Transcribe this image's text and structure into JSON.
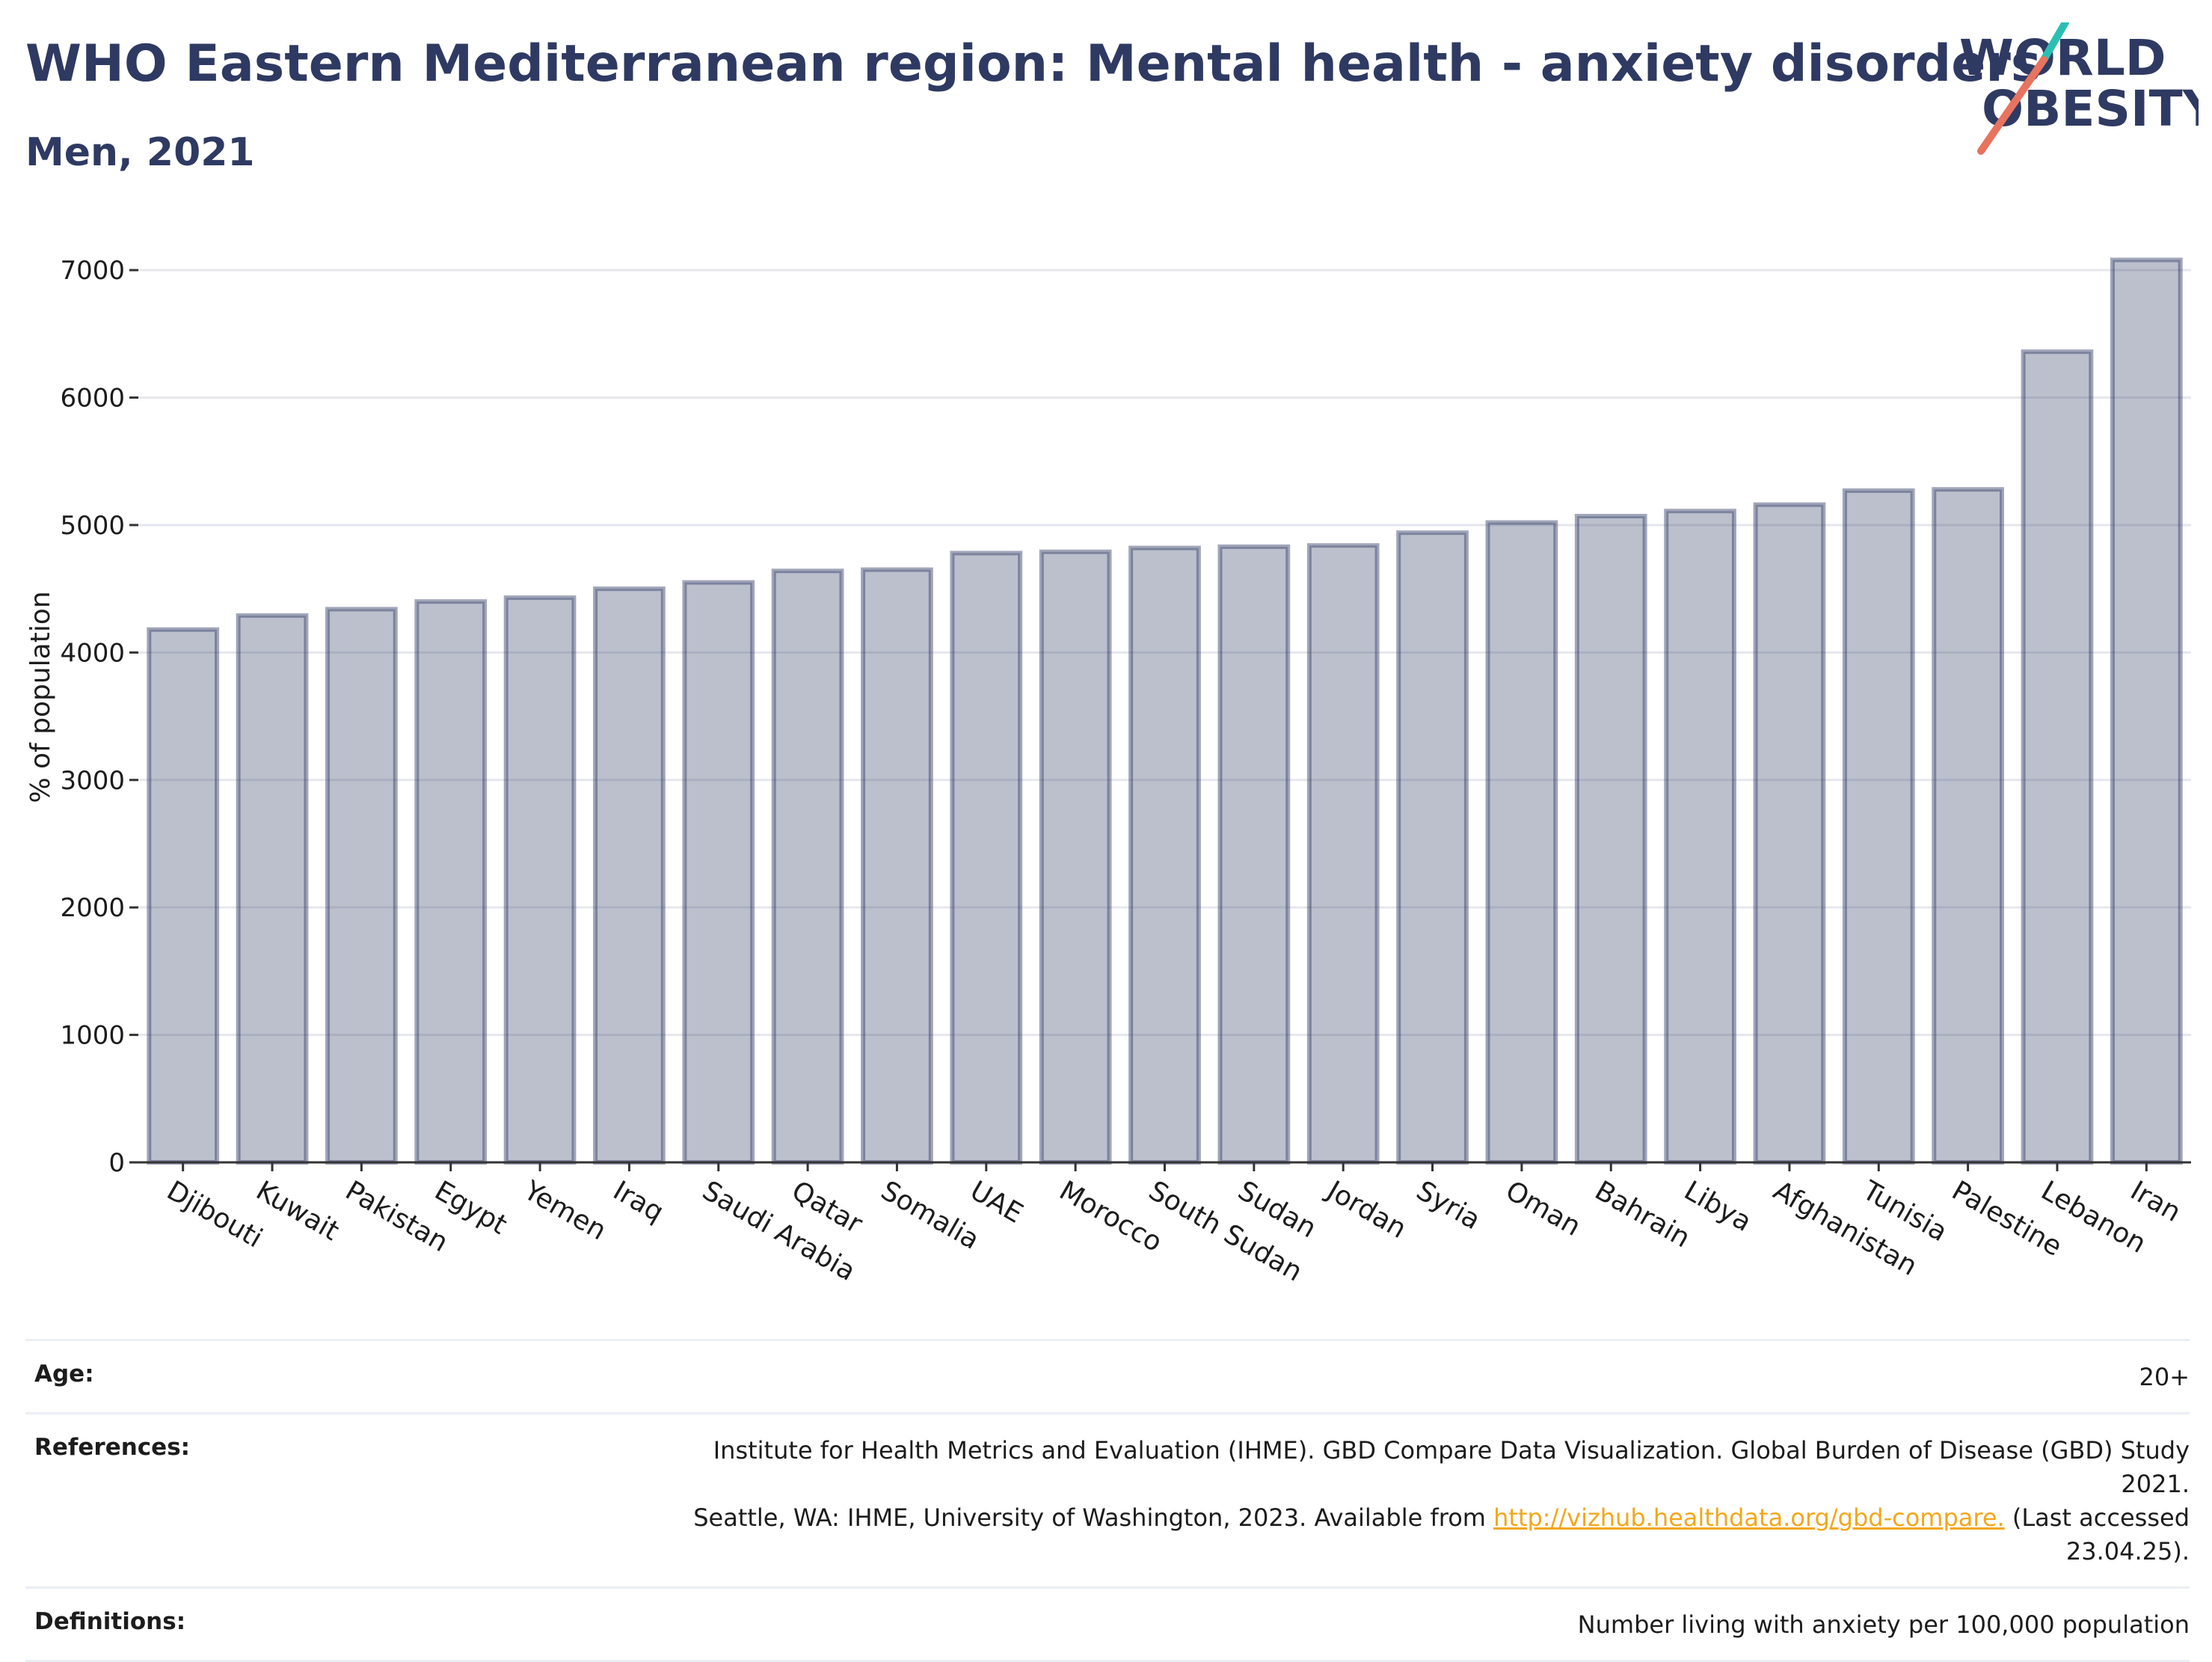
{
  "header": {
    "title": "WHO Eastern Mediterranean region: Mental health - anxiety disorders",
    "subtitle": "Men, 2021"
  },
  "logo": {
    "line1": "WORLD",
    "line2": "OBESITY",
    "icon": "world-obesity-logo"
  },
  "chart_data": {
    "type": "bar",
    "categories": [
      "Djibouti",
      "Kuwait",
      "Pakistan",
      "Egypt",
      "Yemen",
      "Iraq",
      "Saudi Arabia",
      "Qatar",
      "Somalia",
      "UAE",
      "Morocco",
      "South Sudan",
      "Sudan",
      "Jordan",
      "Syria",
      "Oman",
      "Bahrain",
      "Libya",
      "Afghanistan",
      "Tunisia",
      "Palestine",
      "Lebanon",
      "Iran"
    ],
    "values": [
      4180,
      4290,
      4340,
      4400,
      4430,
      4500,
      4550,
      4640,
      4650,
      4780,
      4790,
      4820,
      4830,
      4840,
      4940,
      5020,
      5070,
      5110,
      5160,
      5270,
      5280,
      6360,
      7080
    ],
    "xlabel": "",
    "ylabel": "% of population",
    "ylim": [
      0,
      7300
    ],
    "yticks": [
      0,
      1000,
      2000,
      3000,
      4000,
      5000,
      6000,
      7000
    ],
    "grid": true,
    "bar_color": "#2f3a63"
  },
  "footer": {
    "age_label": "Age:",
    "age_value": "20+",
    "references_label": "References:",
    "references_text_1": "Institute for Health Metrics and Evaluation (IHME). GBD Compare Data Visualization. Global Burden of Disease (GBD) Study 2021.",
    "references_text_2": "Seattle, WA: IHME, University of Washington, 2023. Available from",
    "references_link": "http://vizhub.healthdata.org/gbd-compare.",
    "references_text_3": "(Last accessed",
    "references_text_4": "23.04.25).",
    "definitions_label": "Definitions:",
    "definitions_value": "Number living with anxiety per 100,000 population"
  }
}
